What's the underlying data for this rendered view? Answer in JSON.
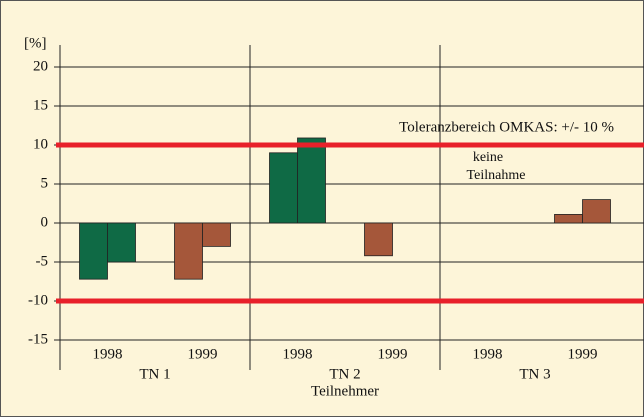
{
  "chart_data": {
    "type": "grouped-bar",
    "y_label": "[%]",
    "x_label": "Teilnehmer",
    "ylim": [
      -15,
      20
    ],
    "yticks": [
      -15,
      -10,
      -5,
      0,
      5,
      10,
      15,
      20
    ],
    "grid": true,
    "groups": [
      {
        "name": "TN 1",
        "years": [
          {
            "year": "1998",
            "color": "#0f6a45",
            "values": [
              -7.2,
              -5
            ]
          },
          {
            "year": "1999",
            "color": "#a5573a",
            "values": [
              -7.2,
              -3
            ]
          }
        ]
      },
      {
        "name": "TN 2",
        "years": [
          {
            "year": "1998",
            "color": "#0f6a45",
            "values": [
              9,
              10.9
            ]
          },
          {
            "year": "1999",
            "color": "#a5573a",
            "values": [
              -4.2,
              null
            ]
          }
        ]
      },
      {
        "name": "TN 3",
        "years": [
          {
            "year": "1998",
            "color": "#0f6a45",
            "values": [
              null,
              null
            ]
          },
          {
            "year": "1999",
            "color": "#a5573a",
            "values": [
              1.1,
              3
            ]
          }
        ]
      }
    ],
    "reference_lines": [
      10,
      -10
    ],
    "reference_color": "#e8202a",
    "reference_label": "Toleranzbereich OMKAS: +/- 10 %",
    "annotation": [
      "keine",
      "Teilnahme"
    ]
  }
}
